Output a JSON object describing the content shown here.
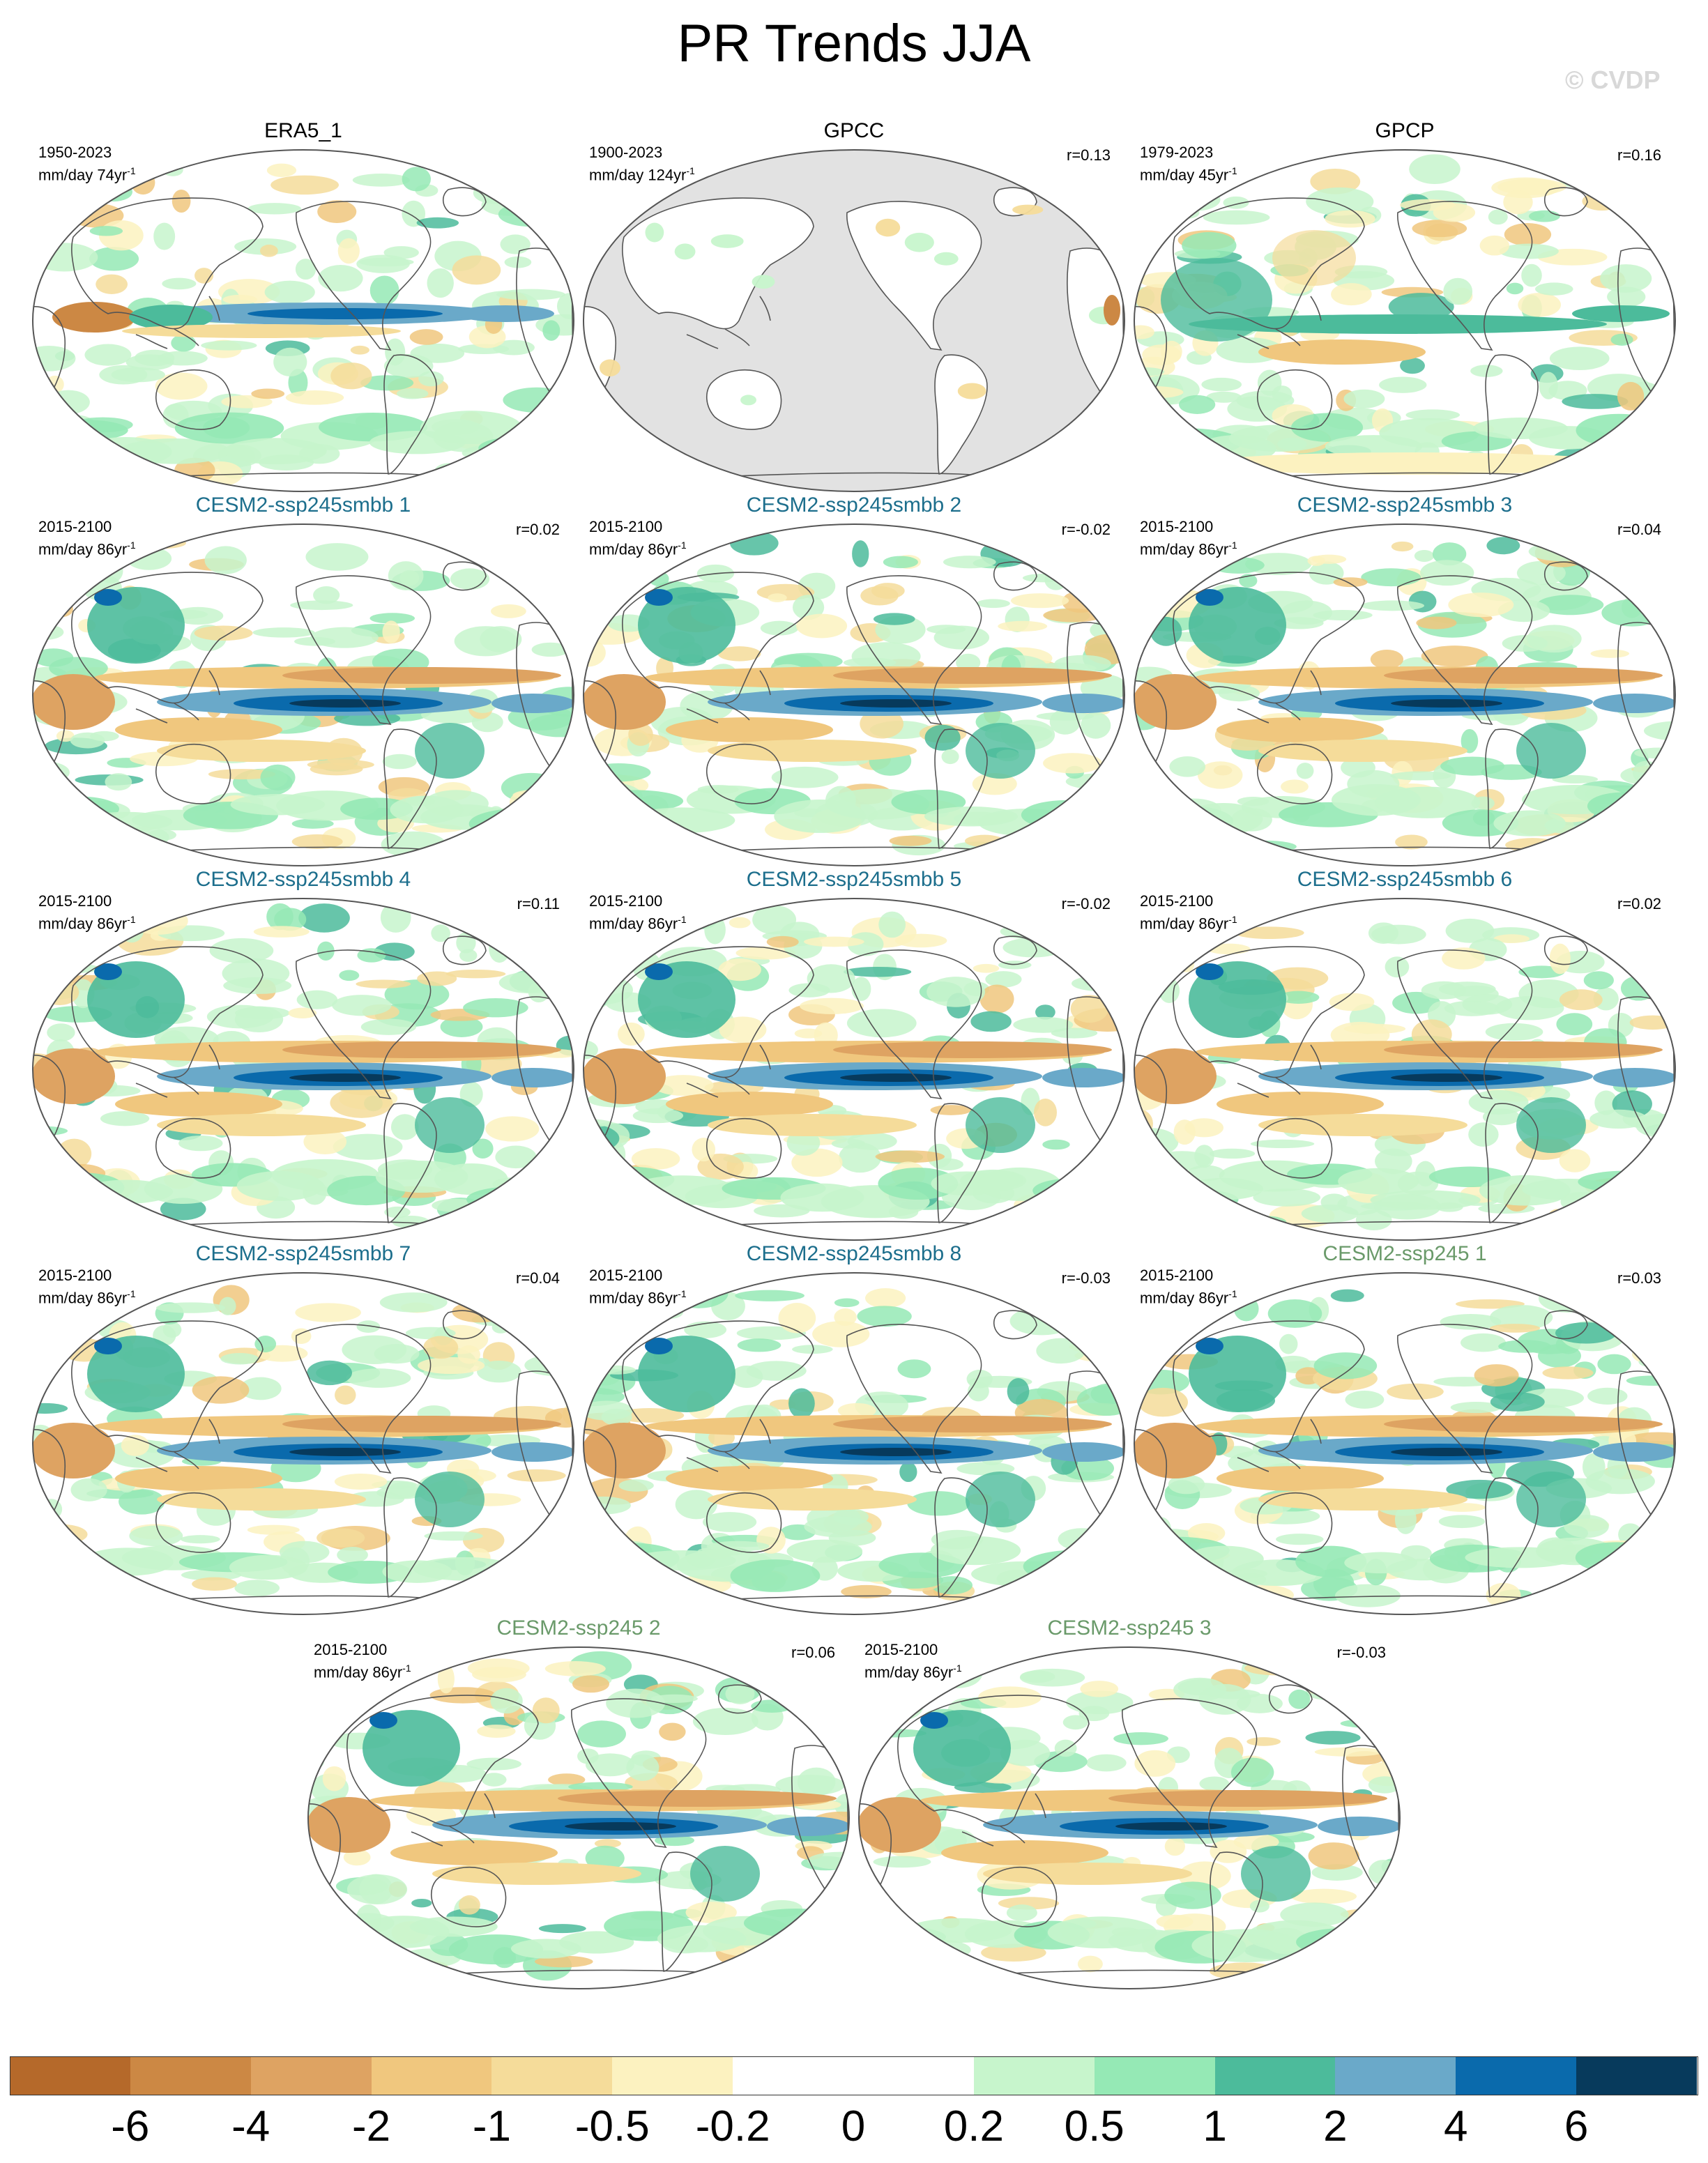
{
  "title": "PR Trends JJA",
  "watermark": "© CVDP",
  "colors": {
    "smbb_title": "#1c6e8c",
    "ssp_title": "#6a9a6a",
    "land_mask": "#e2e2e2",
    "coast": "#555555"
  },
  "panels": [
    {
      "title": "ERA5_1",
      "group": "obs",
      "period": "1950-2023",
      "units": "mm/day 74yr",
      "corr": "",
      "land_mask": false
    },
    {
      "title": "GPCC",
      "group": "obs",
      "period": "1900-2023",
      "units": "mm/day 124yr",
      "corr": "r=0.13",
      "land_mask": true
    },
    {
      "title": "GPCP",
      "group": "obs",
      "period": "1979-2023",
      "units": "mm/day 45yr",
      "corr": "r=0.16",
      "land_mask": false
    },
    {
      "title": "CESM2-ssp245smbb 1",
      "group": "smbb",
      "period": "2015-2100",
      "units": "mm/day 86yr",
      "corr": "r=0.02",
      "land_mask": false
    },
    {
      "title": "CESM2-ssp245smbb 2",
      "group": "smbb",
      "period": "2015-2100",
      "units": "mm/day 86yr",
      "corr": "r=-0.02",
      "land_mask": false
    },
    {
      "title": "CESM2-ssp245smbb 3",
      "group": "smbb",
      "period": "2015-2100",
      "units": "mm/day 86yr",
      "corr": "r=0.04",
      "land_mask": false
    },
    {
      "title": "CESM2-ssp245smbb 4",
      "group": "smbb",
      "period": "2015-2100",
      "units": "mm/day 86yr",
      "corr": "r=0.11",
      "land_mask": false
    },
    {
      "title": "CESM2-ssp245smbb 5",
      "group": "smbb",
      "period": "2015-2100",
      "units": "mm/day 86yr",
      "corr": "r=-0.02",
      "land_mask": false
    },
    {
      "title": "CESM2-ssp245smbb 6",
      "group": "smbb",
      "period": "2015-2100",
      "units": "mm/day 86yr",
      "corr": "r=0.02",
      "land_mask": false
    },
    {
      "title": "CESM2-ssp245smbb 7",
      "group": "smbb",
      "period": "2015-2100",
      "units": "mm/day 86yr",
      "corr": "r=0.04",
      "land_mask": false
    },
    {
      "title": "CESM2-ssp245smbb 8",
      "group": "smbb",
      "period": "2015-2100",
      "units": "mm/day 86yr",
      "corr": "r=-0.03",
      "land_mask": false
    },
    {
      "title": "CESM2-ssp245 1",
      "group": "ssp",
      "period": "2015-2100",
      "units": "mm/day 86yr",
      "corr": "r=0.03",
      "land_mask": false
    },
    {
      "title": "CESM2-ssp245 2",
      "group": "ssp",
      "period": "2015-2100",
      "units": "mm/day 86yr",
      "corr": "r=0.06",
      "land_mask": false
    },
    {
      "title": "CESM2-ssp245 3",
      "group": "ssp",
      "period": "2015-2100",
      "units": "mm/day 86yr",
      "corr": "r=-0.03",
      "land_mask": false
    }
  ],
  "colorbar": {
    "colors": [
      "#b5692a",
      "#cc8844",
      "#dea362",
      "#f0c77e",
      "#f5dc9a",
      "#fcf2c0",
      "#ffffff",
      "#ffffff",
      "#c7f5cc",
      "#95e9b5",
      "#4cbb9b",
      "#6aa9c9",
      "#0a6aac",
      "#073a5c"
    ],
    "labels": [
      "-6",
      "-4",
      "-2",
      "-1",
      "-0.5",
      "-0.2",
      "0",
      "0.2",
      "0.5",
      "1",
      "2",
      "4",
      "6"
    ]
  }
}
